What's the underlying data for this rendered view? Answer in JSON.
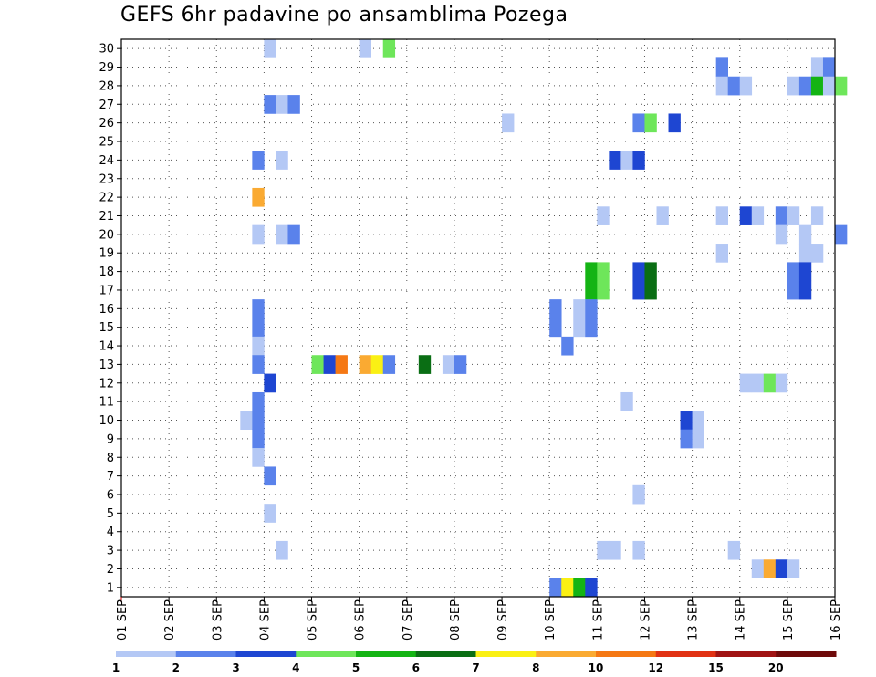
{
  "title": "GEFS 6hr padavine po ansamblima Pozega",
  "chart_data": {
    "type": "heatmap",
    "title": "GEFS 6hr padavine po ansamblima Pozega",
    "xlabel": "",
    "ylabel": "",
    "x_tick_labels": [
      "01 SEP",
      "02 SEP",
      "03 SEP",
      "04 SEP",
      "05 SEP",
      "06 SEP",
      "07 SEP",
      "08 SEP",
      "09 SEP",
      "10 SEP",
      "11 SEP",
      "12 SEP",
      "13 SEP",
      "14 SEP",
      "15 SEP",
      "16 SEP"
    ],
    "y_tick_labels": [
      "1",
      "2",
      "3",
      "4",
      "5",
      "6",
      "7",
      "8",
      "9",
      "10",
      "11",
      "12",
      "13",
      "14",
      "15",
      "16",
      "17",
      "18",
      "19",
      "20",
      "21",
      "22",
      "23",
      "24",
      "25",
      "26",
      "27",
      "28",
      "29",
      "30"
    ],
    "x_range_days": [
      0,
      15
    ],
    "y_range": [
      0.5,
      30.5
    ],
    "step_hours": 6,
    "grid": true,
    "colorbar": {
      "labels": [
        "1",
        "2",
        "3",
        "4",
        "5",
        "6",
        "7",
        "8",
        "10",
        "12",
        "15",
        "20"
      ],
      "colors": [
        "#b4c8f5",
        "#5a82eb",
        "#1e46d2",
        "#6ee65a",
        "#14b414",
        "#0a6e14",
        "#faf014",
        "#faaa32",
        "#f57814",
        "#e13214",
        "#a01414",
        "#6e0a0a"
      ]
    },
    "cells": [
      {
        "m": 30,
        "t": 12,
        "c": 0
      },
      {
        "m": 30,
        "t": 20,
        "c": 0
      },
      {
        "m": 30,
        "t": 22,
        "c": 3
      },
      {
        "m": 29,
        "t": 50,
        "c": 1
      },
      {
        "m": 29,
        "t": 58,
        "c": 0
      },
      {
        "m": 29,
        "t": 59,
        "c": 1
      },
      {
        "m": 28,
        "t": 50,
        "c": 0
      },
      {
        "m": 28,
        "t": 51,
        "c": 1
      },
      {
        "m": 28,
        "t": 52,
        "c": 0
      },
      {
        "m": 28,
        "t": 56,
        "c": 0
      },
      {
        "m": 28,
        "t": 57,
        "c": 1
      },
      {
        "m": 28,
        "t": 58,
        "c": 4
      },
      {
        "m": 28,
        "t": 59,
        "c": 0
      },
      {
        "m": 28,
        "t": 60,
        "c": 3
      },
      {
        "m": 27,
        "t": 12,
        "c": 1
      },
      {
        "m": 27,
        "t": 13,
        "c": 0
      },
      {
        "m": 27,
        "t": 14,
        "c": 1
      },
      {
        "m": 26,
        "t": 32,
        "c": 0
      },
      {
        "m": 26,
        "t": 43,
        "c": 1
      },
      {
        "m": 26,
        "t": 44,
        "c": 3
      },
      {
        "m": 26,
        "t": 46,
        "c": 2
      },
      {
        "m": 24,
        "t": 11,
        "c": 1
      },
      {
        "m": 24,
        "t": 13,
        "c": 0
      },
      {
        "m": 24,
        "t": 41,
        "c": 2
      },
      {
        "m": 24,
        "t": 42,
        "c": 0
      },
      {
        "m": 24,
        "t": 43,
        "c": 2
      },
      {
        "m": 22,
        "t": 11,
        "c": 7
      },
      {
        "m": 21,
        "t": 50,
        "c": 0
      },
      {
        "m": 21,
        "t": 40,
        "c": 0
      },
      {
        "m": 21,
        "t": 45,
        "c": 0
      },
      {
        "m": 21,
        "t": 52,
        "c": 2
      },
      {
        "m": 21,
        "t": 53,
        "c": 0
      },
      {
        "m": 21,
        "t": 55,
        "c": 1
      },
      {
        "m": 21,
        "t": 56,
        "c": 0
      },
      {
        "m": 21,
        "t": 58,
        "c": 0
      },
      {
        "m": 20,
        "t": 11,
        "c": 0
      },
      {
        "m": 20,
        "t": 13,
        "c": 0
      },
      {
        "m": 20,
        "t": 14,
        "c": 1
      },
      {
        "m": 20,
        "t": 55,
        "c": 0
      },
      {
        "m": 20,
        "t": 57,
        "c": 0
      },
      {
        "m": 20,
        "t": 60,
        "c": 1
      },
      {
        "m": 19,
        "t": 50,
        "c": 0
      },
      {
        "m": 19,
        "t": 57,
        "c": 0
      },
      {
        "m": 19,
        "t": 58,
        "c": 0
      },
      {
        "m": 18,
        "t": 39,
        "c": 4
      },
      {
        "m": 18,
        "t": 40,
        "c": 3
      },
      {
        "m": 18,
        "t": 43,
        "c": 2
      },
      {
        "m": 18,
        "t": 44,
        "c": 5
      },
      {
        "m": 18,
        "t": 56,
        "c": 1
      },
      {
        "m": 18,
        "t": 57,
        "c": 2
      },
      {
        "m": 17,
        "t": 39,
        "c": 4
      },
      {
        "m": 17,
        "t": 40,
        "c": 3
      },
      {
        "m": 17,
        "t": 43,
        "c": 2
      },
      {
        "m": 17,
        "t": 44,
        "c": 5
      },
      {
        "m": 17,
        "t": 56,
        "c": 1
      },
      {
        "m": 17,
        "t": 57,
        "c": 2
      },
      {
        "m": 16,
        "t": 11,
        "c": 1
      },
      {
        "m": 16,
        "t": 36,
        "c": 1
      },
      {
        "m": 16,
        "t": 38,
        "c": 0
      },
      {
        "m": 16,
        "t": 39,
        "c": 1
      },
      {
        "m": 15,
        "t": 11,
        "c": 1
      },
      {
        "m": 15,
        "t": 36,
        "c": 1
      },
      {
        "m": 15,
        "t": 38,
        "c": 0
      },
      {
        "m": 15,
        "t": 39,
        "c": 1
      },
      {
        "m": 14,
        "t": 11,
        "c": 0
      },
      {
        "m": 14,
        "t": 37,
        "c": 1
      },
      {
        "m": 13,
        "t": 11,
        "c": 1
      },
      {
        "m": 13,
        "t": 16,
        "c": 3
      },
      {
        "m": 13,
        "t": 17,
        "c": 2
      },
      {
        "m": 13,
        "t": 18,
        "c": 8
      },
      {
        "m": 13,
        "t": 20,
        "c": 7
      },
      {
        "m": 13,
        "t": 21,
        "c": 6
      },
      {
        "m": 13,
        "t": 22,
        "c": 1
      },
      {
        "m": 13,
        "t": 25,
        "c": 5
      },
      {
        "m": 13,
        "t": 27,
        "c": 0
      },
      {
        "m": 13,
        "t": 28,
        "c": 1
      },
      {
        "m": 12,
        "t": 12,
        "c": 2
      },
      {
        "m": 12,
        "t": 52,
        "c": 0
      },
      {
        "m": 12,
        "t": 53,
        "c": 0
      },
      {
        "m": 12,
        "t": 54,
        "c": 3
      },
      {
        "m": 12,
        "t": 55,
        "c": 0
      },
      {
        "m": 11,
        "t": 11,
        "c": 1
      },
      {
        "m": 11,
        "t": 42,
        "c": 0
      },
      {
        "m": 10,
        "t": 10,
        "c": 0
      },
      {
        "m": 10,
        "t": 11,
        "c": 1
      },
      {
        "m": 10,
        "t": 47,
        "c": 2
      },
      {
        "m": 10,
        "t": 48,
        "c": 0
      },
      {
        "m": 9,
        "t": 11,
        "c": 1
      },
      {
        "m": 9,
        "t": 47,
        "c": 1
      },
      {
        "m": 9,
        "t": 48,
        "c": 0
      },
      {
        "m": 8,
        "t": 11,
        "c": 0
      },
      {
        "m": 7,
        "t": 12,
        "c": 1
      },
      {
        "m": 6,
        "t": 43,
        "c": 0
      },
      {
        "m": 5,
        "t": 12,
        "c": 0
      },
      {
        "m": 3,
        "t": 13,
        "c": 0
      },
      {
        "m": 3,
        "t": 40,
        "c": 0
      },
      {
        "m": 3,
        "t": 41,
        "c": 0
      },
      {
        "m": 3,
        "t": 43,
        "c": 0
      },
      {
        "m": 3,
        "t": 51,
        "c": 0
      },
      {
        "m": 2,
        "t": 53,
        "c": 0
      },
      {
        "m": 2,
        "t": 54,
        "c": 7
      },
      {
        "m": 2,
        "t": 55,
        "c": 2
      },
      {
        "m": 2,
        "t": 56,
        "c": 0
      },
      {
        "m": 1,
        "t": 36,
        "c": 1
      },
      {
        "m": 1,
        "t": 37,
        "c": 6
      },
      {
        "m": 1,
        "t": 38,
        "c": 4
      },
      {
        "m": 1,
        "t": 39,
        "c": 2
      }
    ]
  }
}
